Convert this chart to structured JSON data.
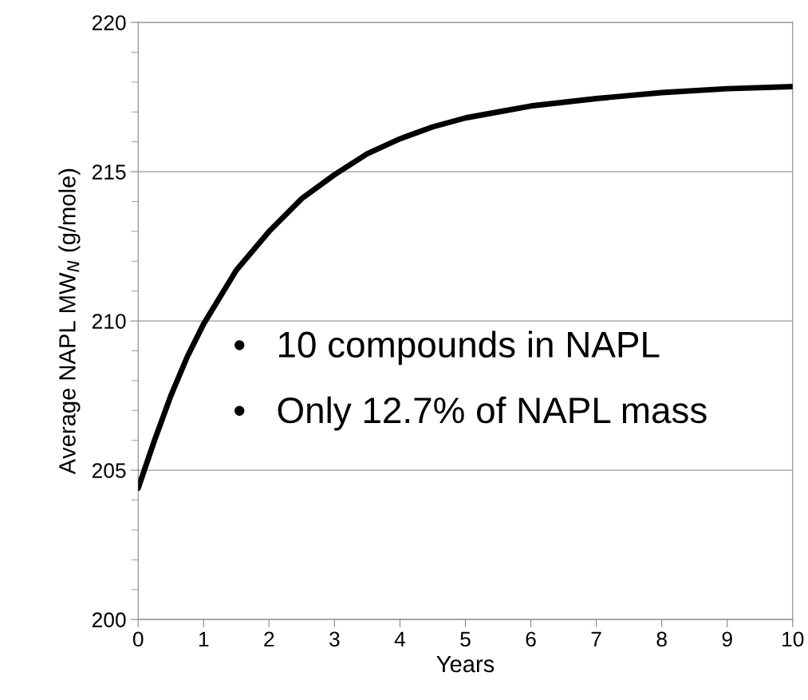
{
  "chart_data": {
    "type": "line",
    "xlabel": "Years",
    "ylabel": "Average NAPL MW$_{N}$ (g/mole)",
    "x": [
      0,
      0.25,
      0.5,
      0.75,
      1,
      1.5,
      2,
      2.5,
      3,
      3.5,
      4,
      4.5,
      5,
      5.5,
      6,
      7,
      8,
      9,
      10
    ],
    "series": [
      {
        "color": "#000000",
        "values": [
          204.4,
          206.0,
          207.5,
          208.8,
          209.9,
          211.7,
          213.0,
          214.1,
          214.9,
          215.6,
          216.1,
          216.5,
          216.8,
          217.0,
          217.2,
          217.45,
          217.65,
          217.78,
          217.85
        ]
      }
    ],
    "xlim": [
      0,
      10
    ],
    "ylim": [
      200,
      220
    ],
    "xticks": [
      0,
      1,
      2,
      3,
      4,
      5,
      6,
      7,
      8,
      9,
      10
    ],
    "yticks": [
      200,
      205,
      210,
      215,
      220
    ],
    "grid": "y",
    "annotations": [
      "•   10 compounds in NAPL",
      "•   Only 12.7% of NAPL mass"
    ]
  }
}
